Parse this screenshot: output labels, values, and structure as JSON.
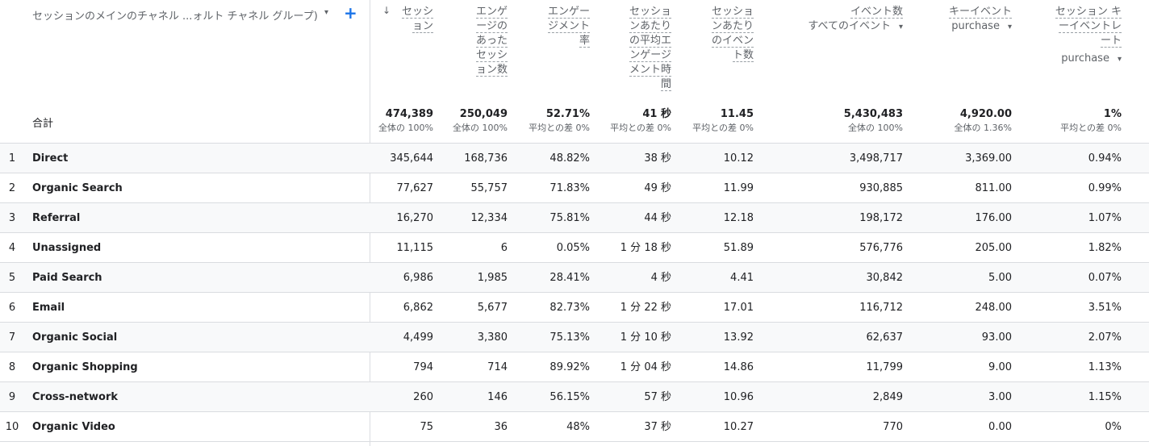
{
  "dimension": {
    "label": "セッションのメインのチャネル ...ォルト チャネル グループ)",
    "caret": "▾",
    "add": "+"
  },
  "sort_icon": "↓",
  "columns": [
    {
      "key": "sessions",
      "lines": [
        "セッシ",
        "ョン"
      ],
      "sort": true
    },
    {
      "key": "engaged",
      "lines": [
        "エンゲ",
        "ージの",
        "あった",
        "セッシ",
        "ョン数"
      ]
    },
    {
      "key": "engagement_rate",
      "lines": [
        "エンゲー",
        "ジメント",
        "率"
      ]
    },
    {
      "key": "avg_engagement_time",
      "lines": [
        "セッショ",
        "ンあたり",
        "の平均エ",
        "ンゲージ",
        "メント時",
        "間"
      ]
    },
    {
      "key": "events_per_session",
      "lines": [
        "セッショ",
        "ンあたり",
        "のイベン",
        "ト数"
      ]
    },
    {
      "key": "event_count",
      "lines": [
        "イベント数"
      ],
      "select": "すべてのイベント"
    },
    {
      "key": "key_events",
      "lines": [
        "キーイベント"
      ],
      "select": "purchase"
    },
    {
      "key": "session_key_event_rate",
      "lines": [
        "セッション キ",
        "ーイベントレ",
        "ート"
      ],
      "select": "purchase"
    }
  ],
  "totals": {
    "label": "合計",
    "values": [
      {
        "v": "474,389",
        "s": "全体の 100%"
      },
      {
        "v": "250,049",
        "s": "全体の 100%"
      },
      {
        "v": "52.71%",
        "s": "平均との差 0%"
      },
      {
        "v": "41 秒",
        "s": "平均との差 0%"
      },
      {
        "v": "11.45",
        "s": "平均との差 0%"
      },
      {
        "v": "5,430,483",
        "s": "全体の 100%"
      },
      {
        "v": "4,920.00",
        "s": "全体の 1.36%"
      },
      {
        "v": "1%",
        "s": "平均との差 0%"
      }
    ]
  },
  "rows": [
    {
      "idx": "1",
      "name": "Direct",
      "cells": [
        "345,644",
        "168,736",
        "48.82%",
        "38 秒",
        "10.12",
        "3,498,717",
        "3,369.00",
        "0.94%"
      ]
    },
    {
      "idx": "2",
      "name": "Organic Search",
      "cells": [
        "77,627",
        "55,757",
        "71.83%",
        "49 秒",
        "11.99",
        "930,885",
        "811.00",
        "0.99%"
      ]
    },
    {
      "idx": "3",
      "name": "Referral",
      "cells": [
        "16,270",
        "12,334",
        "75.81%",
        "44 秒",
        "12.18",
        "198,172",
        "176.00",
        "1.07%"
      ]
    },
    {
      "idx": "4",
      "name": "Unassigned",
      "cells": [
        "11,115",
        "6",
        "0.05%",
        "1 分 18 秒",
        "51.89",
        "576,776",
        "205.00",
        "1.82%"
      ]
    },
    {
      "idx": "5",
      "name": "Paid Search",
      "cells": [
        "6,986",
        "1,985",
        "28.41%",
        "4 秒",
        "4.41",
        "30,842",
        "5.00",
        "0.07%"
      ]
    },
    {
      "idx": "6",
      "name": "Email",
      "cells": [
        "6,862",
        "5,677",
        "82.73%",
        "1 分 22 秒",
        "17.01",
        "116,712",
        "248.00",
        "3.51%"
      ]
    },
    {
      "idx": "7",
      "name": "Organic Social",
      "cells": [
        "4,499",
        "3,380",
        "75.13%",
        "1 分 10 秒",
        "13.92",
        "62,637",
        "93.00",
        "2.07%"
      ]
    },
    {
      "idx": "8",
      "name": "Organic Shopping",
      "cells": [
        "794",
        "714",
        "89.92%",
        "1 分 04 秒",
        "14.86",
        "11,799",
        "9.00",
        "1.13%"
      ]
    },
    {
      "idx": "9",
      "name": "Cross-network",
      "cells": [
        "260",
        "146",
        "56.15%",
        "57 秒",
        "10.96",
        "2,849",
        "3.00",
        "1.15%"
      ]
    },
    {
      "idx": "10",
      "name": "Organic Video",
      "cells": [
        "75",
        "36",
        "48%",
        "37 秒",
        "10.27",
        "770",
        "0.00",
        "0%"
      ]
    }
  ]
}
